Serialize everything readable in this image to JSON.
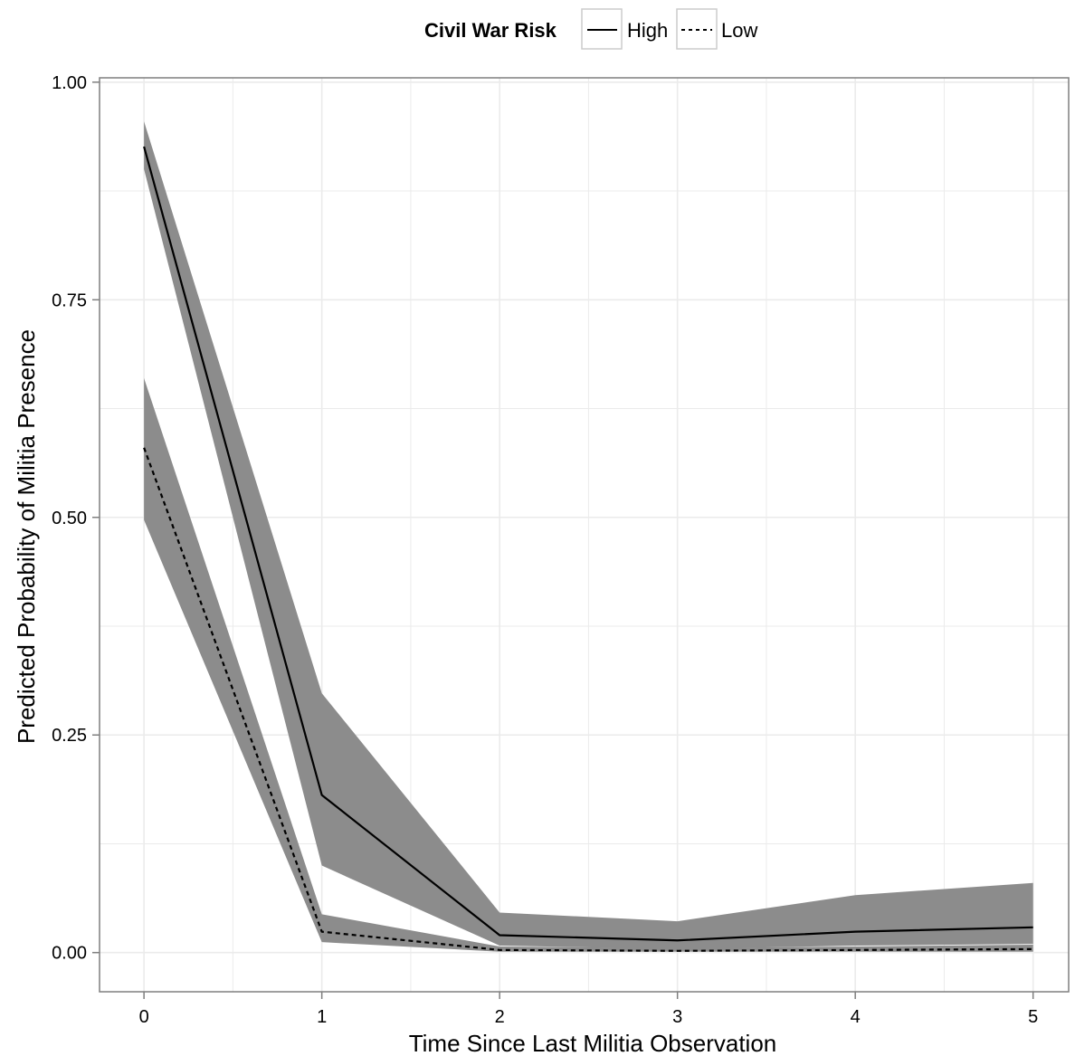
{
  "chart_data": {
    "type": "line",
    "title": "",
    "xlabel": "Time Since Last Militia Observation",
    "ylabel": "Predicted Probability of Militia Presence",
    "x": [
      0,
      1,
      2,
      3,
      4,
      5
    ],
    "xlim": [
      -0.25,
      5.2
    ],
    "ylim": [
      -0.045,
      1.005
    ],
    "xticks": [
      "0",
      "1",
      "2",
      "3",
      "4",
      "5"
    ],
    "yticks": [
      "0.00",
      "0.25",
      "0.50",
      "0.75",
      "1.00"
    ],
    "grid": true,
    "legend": {
      "title": "Civil War Risk",
      "position": "top"
    },
    "series": [
      {
        "name": "High",
        "linestyle": "solid",
        "values": [
          0.926,
          0.181,
          0.02,
          0.014,
          0.024,
          0.029
        ],
        "ci_upper": [
          0.955,
          0.298,
          0.046,
          0.036,
          0.066,
          0.08
        ],
        "ci_lower": [
          0.9,
          0.1,
          0.008,
          0.004,
          0.008,
          0.01
        ]
      },
      {
        "name": "Low",
        "linestyle": "dashed",
        "values": [
          0.58,
          0.024,
          0.003,
          0.002,
          0.003,
          0.004
        ],
        "ci_upper": [
          0.66,
          0.044,
          0.007,
          0.005,
          0.007,
          0.009
        ],
        "ci_lower": [
          0.497,
          0.012,
          0.001,
          0.001,
          0.001,
          0.001
        ]
      }
    ],
    "colors": {
      "band": "#8c8c8c",
      "line": "#000000",
      "grid": "#ebebeb",
      "panel_border": "#7f7f7f"
    }
  }
}
